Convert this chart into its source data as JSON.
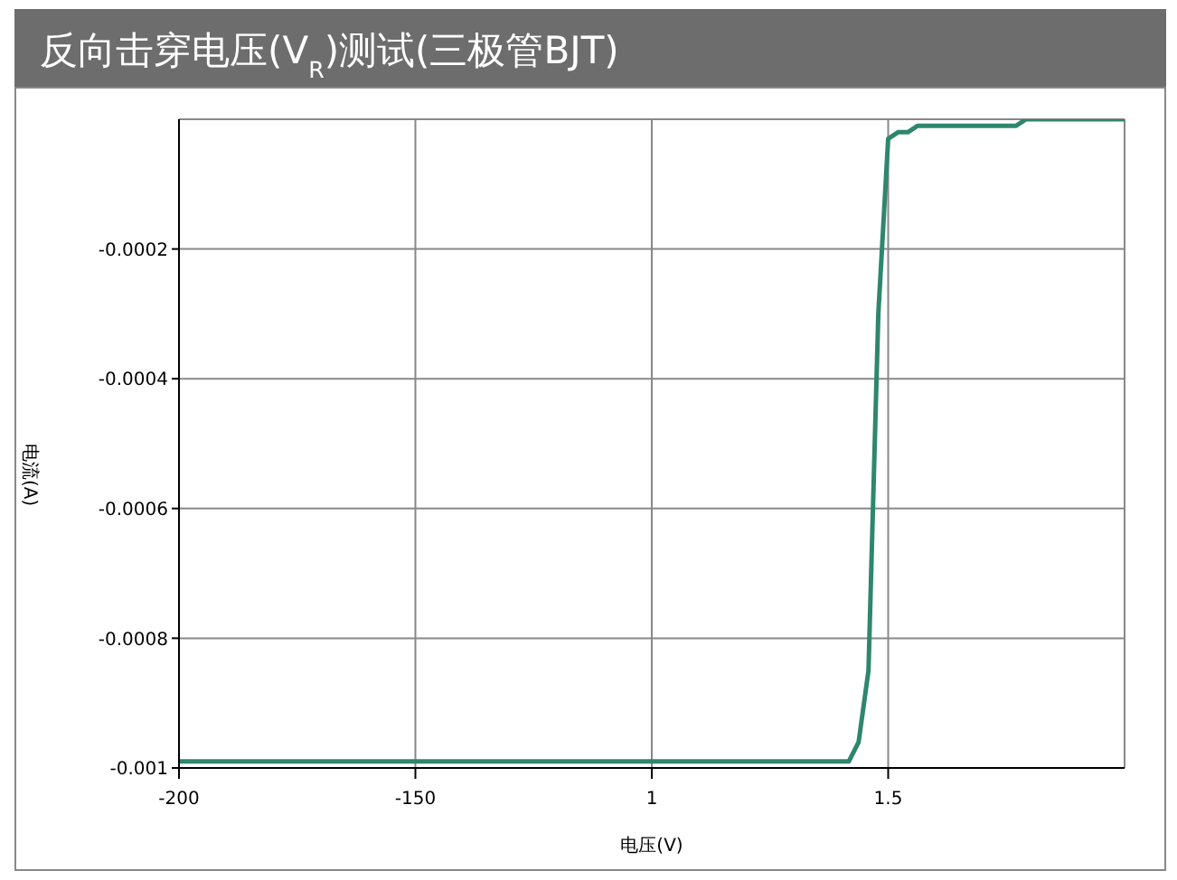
{
  "chart_data": {
    "type": "line",
    "title": "反向击穿电压(V$_{R}$)测试(三极管BJT)",
    "xlabel": "电压(V)",
    "ylabel": "电流(A)",
    "categories": [
      "-200",
      null,
      null,
      null,
      null,
      null,
      null,
      null,
      null,
      null,
      null,
      null,
      null,
      null,
      null,
      null,
      null,
      null,
      null,
      null,
      null,
      null,
      null,
      null,
      "-150",
      null,
      null,
      null,
      null,
      null,
      null,
      null,
      null,
      null,
      null,
      null,
      null,
      null,
      null,
      null,
      null,
      null,
      null,
      null,
      null,
      null,
      null,
      null,
      "1",
      null,
      null,
      null,
      null,
      null,
      null,
      null,
      null,
      null,
      null,
      null,
      null,
      null,
      null,
      null,
      null,
      null,
      null,
      null,
      null,
      null,
      null,
      null,
      "1.5",
      null,
      null,
      null,
      null,
      null,
      null,
      null,
      null,
      null,
      null,
      null,
      null,
      null,
      null,
      null,
      null,
      null,
      null,
      null,
      null,
      null,
      null,
      null,
      null
    ],
    "series": [
      {
        "color": "#2e876c",
        "values": [
          -0.00099,
          -0.00099,
          -0.00099,
          -0.00099,
          -0.00099,
          -0.00099,
          -0.00099,
          -0.00099,
          -0.00099,
          -0.00099,
          -0.00099,
          -0.00099,
          -0.00099,
          -0.00099,
          -0.00099,
          -0.00099,
          -0.00099,
          -0.00099,
          -0.00099,
          -0.00099,
          -0.00099,
          -0.00099,
          -0.00099,
          -0.00099,
          -0.00099,
          -0.00099,
          -0.00099,
          -0.00099,
          -0.00099,
          -0.00099,
          -0.00099,
          -0.00099,
          -0.00099,
          -0.00099,
          -0.00099,
          -0.00099,
          -0.00099,
          -0.00099,
          -0.00099,
          -0.00099,
          -0.00099,
          -0.00099,
          -0.00099,
          -0.00099,
          -0.00099,
          -0.00099,
          -0.00099,
          -0.00099,
          -0.00099,
          -0.00099,
          -0.00099,
          -0.00099,
          -0.00099,
          -0.00099,
          -0.00099,
          -0.00099,
          -0.00099,
          -0.00099,
          -0.00099,
          -0.00099,
          -0.00099,
          -0.00099,
          -0.00099,
          -0.00099,
          -0.00099,
          -0.00099,
          -0.00099,
          -0.00099,
          -0.00099,
          -0.00096,
          -0.00085,
          -0.0003,
          -3e-05,
          -2e-05,
          -2e-05,
          -1e-05,
          -1e-05,
          -1e-05,
          -1e-05,
          -1e-05,
          -1e-05,
          -1e-05,
          -1e-05,
          -1e-05,
          -1e-05,
          -1e-05,
          0,
          0,
          0,
          0,
          0,
          0,
          0,
          0,
          0,
          0,
          0
        ]
      }
    ],
    "ylim": [
      -0.001,
      0
    ],
    "yticks": [
      -0.001,
      -0.0008,
      -0.0006,
      -0.0004,
      -0.0002
    ],
    "grid": true,
    "marker": "none",
    "line_style": "solid"
  }
}
